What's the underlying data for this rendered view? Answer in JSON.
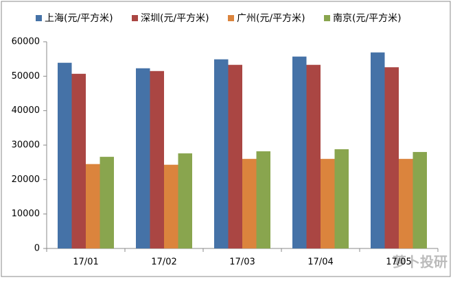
{
  "chart_data": {
    "type": "bar",
    "categories": [
      "17/01",
      "17/02",
      "17/03",
      "17/04",
      "17/05"
    ],
    "series": [
      {
        "name": "上海(元/平方米)",
        "color": "#4572a7",
        "values": [
          53900,
          52300,
          54900,
          55700,
          56900
        ]
      },
      {
        "name": "深圳(元/平方米)",
        "color": "#aa4643",
        "values": [
          50700,
          51500,
          53300,
          53300,
          52600
        ]
      },
      {
        "name": "广州(元/平方米)",
        "color": "#db843d",
        "values": [
          24500,
          24300,
          26000,
          26000,
          26000
        ]
      },
      {
        "name": "南京(元/平方米)",
        "color": "#89a54e",
        "values": [
          26600,
          27600,
          28200,
          28800,
          28000
        ]
      }
    ],
    "ylim": [
      0,
      60000
    ],
    "yticks": [
      0,
      10000,
      20000,
      30000,
      40000,
      50000,
      60000
    ],
    "grid": false,
    "legend": "top"
  },
  "watermark": "萝卜投研"
}
